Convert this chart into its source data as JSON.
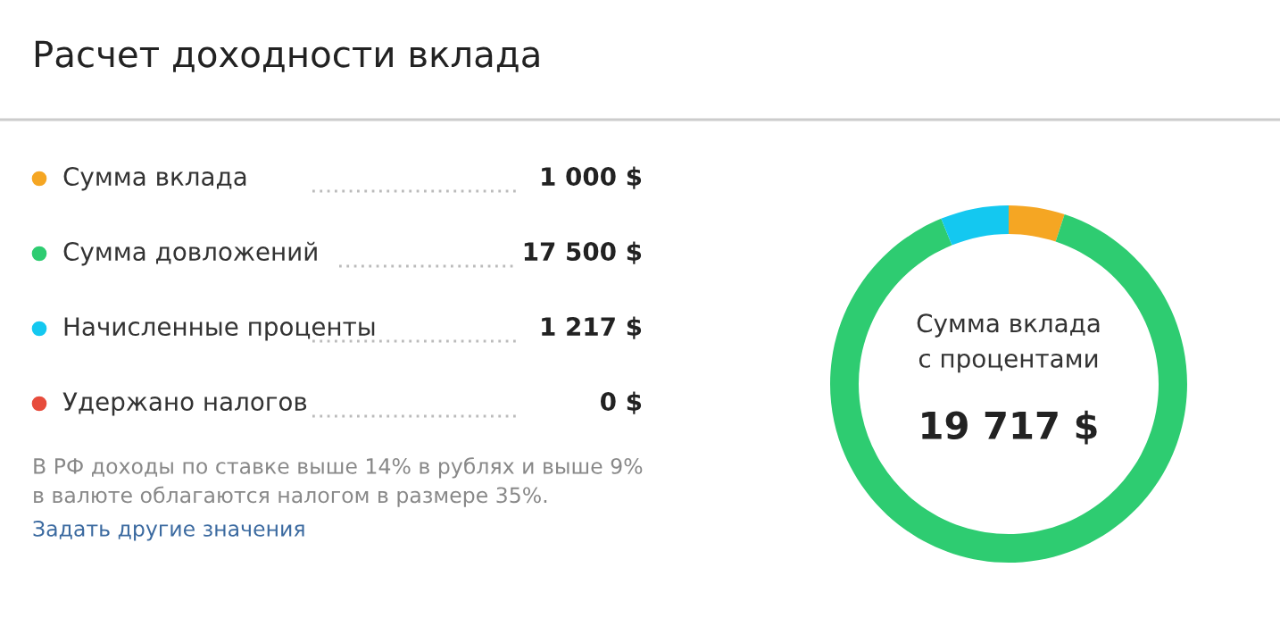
{
  "chart_data": {
    "type": "donut",
    "title": "Расчет доходности вклада",
    "categories": [
      "Сумма вклада",
      "Сумма довложений",
      "Начисленные проценты",
      "Удержано налогов"
    ],
    "values": [
      1000,
      17500,
      1217,
      0
    ],
    "colors": [
      "#f5a623",
      "#2ecc71",
      "#14c8f0",
      "#e74c3c"
    ],
    "value_labels": [
      "1 000 $",
      "17 500 $",
      "1 217 $",
      "0 $"
    ],
    "legend": "left",
    "annotations": [
      "Сумма вклада\nс процентами",
      "19 717 $",
      "В РФ доходы по ставке выше 14% в рублях и выше 9%\nв валюте облагаются налогом в размере 35%.",
      "Задать другие значения"
    ]
  }
}
